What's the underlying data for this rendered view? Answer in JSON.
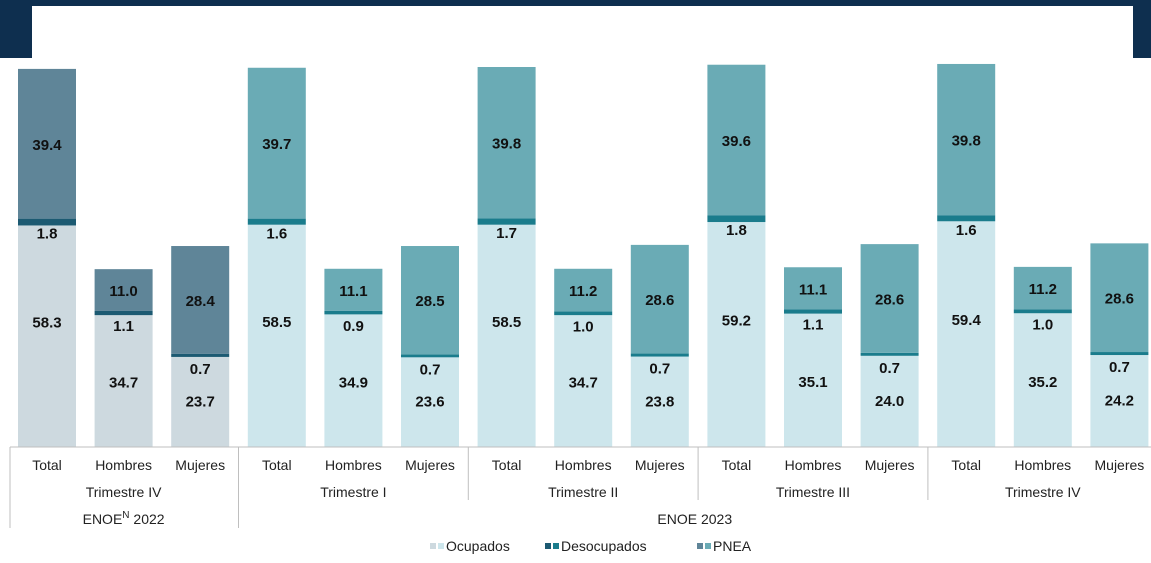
{
  "chart_data": {
    "type": "bar",
    "stacked": true,
    "categories": [
      {
        "label": "Total",
        "period": "Trimestre IV",
        "survey": "ENOE"
      },
      {
        "label": "Hombres",
        "period": "Trimestre IV",
        "survey": "ENOE"
      },
      {
        "label": "Mujeres",
        "period": "Trimestre IV",
        "survey": "ENOE"
      },
      {
        "label": "Total",
        "period": "Trimestre I",
        "survey": "ENOE 2023"
      },
      {
        "label": "Hombres",
        "period": "Trimestre I",
        "survey": "ENOE 2023"
      },
      {
        "label": "Mujeres",
        "period": "Trimestre I",
        "survey": "ENOE 2023"
      },
      {
        "label": "Total",
        "period": "Trimestre II",
        "survey": "ENOE 2023"
      },
      {
        "label": "Hombres",
        "period": "Trimestre II",
        "survey": "ENOE 2023"
      },
      {
        "label": "Mujeres",
        "period": "Trimestre II",
        "survey": "ENOE 2023"
      },
      {
        "label": "Total",
        "period": "Trimestre III",
        "survey": "ENOE 2023"
      },
      {
        "label": "Hombres",
        "period": "Trimestre III",
        "survey": "ENOE 2023"
      },
      {
        "label": "Mujeres",
        "period": "Trimestre III",
        "survey": "ENOE 2023"
      },
      {
        "label": "Total",
        "period": "Trimestre IV",
        "survey": "ENOE 2023"
      },
      {
        "label": "Hombres",
        "period": "Trimestre IV",
        "survey": "ENOE 2023"
      },
      {
        "label": "Mujeres",
        "period": "Trimestre IV",
        "survey": "ENOE 2023"
      }
    ],
    "series": [
      {
        "name": "Ocupados",
        "values": [
          58.3,
          34.7,
          23.7,
          58.5,
          34.9,
          23.6,
          58.5,
          34.7,
          23.8,
          59.2,
          35.1,
          24.0,
          59.4,
          35.2,
          24.2
        ]
      },
      {
        "name": "Desocupados",
        "values": [
          1.8,
          1.1,
          0.7,
          1.6,
          0.9,
          0.7,
          1.7,
          1.0,
          0.7,
          1.8,
          1.1,
          0.7,
          1.6,
          1.0,
          0.7
        ]
      },
      {
        "name": "PNEA",
        "values": [
          39.4,
          11.0,
          28.4,
          39.7,
          11.1,
          28.5,
          39.8,
          11.2,
          28.6,
          39.6,
          11.1,
          28.6,
          39.8,
          11.2,
          28.6
        ]
      }
    ],
    "period_groups": [
      "Trimestre IV",
      "Trimestre I",
      "Trimestre II",
      "Trimestre III",
      "Trimestre IV"
    ],
    "survey_groups": [
      {
        "label": "ENOE",
        "superscript": "N",
        "suffix": " 2022"
      },
      {
        "label": "ENOE 2023"
      }
    ],
    "colors": {
      "Ocupados": [
        "#cdd9df",
        "#cde6ec"
      ],
      "Desocupados": [
        "#1c5a72",
        "#1a7c8c"
      ],
      "PNEA": [
        "#5f8598",
        "#6aabb5"
      ],
      "frame": "#0e2f4f",
      "axis": "#bfbfbf"
    },
    "xlabel": "",
    "ylabel": "",
    "grid": false,
    "legend_position": "bottom-center"
  }
}
